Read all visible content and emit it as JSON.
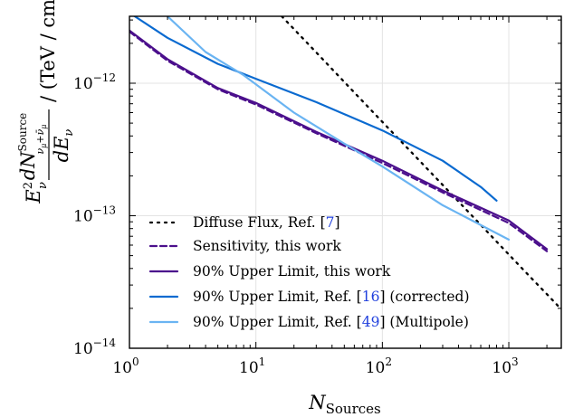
{
  "chart_data": {
    "type": "line",
    "xscale": "log",
    "yscale": "log",
    "xlim": [
      1,
      2600
    ],
    "ylim": [
      1e-14,
      3.2e-12
    ],
    "grid": true,
    "xlabel": {
      "main": "N",
      "sub": "Sources"
    },
    "ylabel": {
      "e": "E",
      "e_sup": "2",
      "e_sub": "ν",
      "num": "dN",
      "num_sup": "Source",
      "num_sub": "ν",
      "num_sub2": "μ",
      "num_sub3": "+ν̄",
      "num_sub4": "μ",
      "den": "dE",
      "den_sub": "ν",
      "unit": "/ (TeV / cm",
      "unit_sup": "2",
      "unit_end": " s)"
    },
    "xticks": [
      {
        "value": 1,
        "base": "10",
        "exp": "0"
      },
      {
        "value": 10,
        "base": "10",
        "exp": "1"
      },
      {
        "value": 100,
        "base": "10",
        "exp": "2"
      },
      {
        "value": 1000,
        "base": "10",
        "exp": "3"
      }
    ],
    "yticks": [
      {
        "value": 1e-14,
        "base": "10",
        "exp": "−14"
      },
      {
        "value": 1e-13,
        "base": "10",
        "exp": "−13"
      },
      {
        "value": 1e-12,
        "base": "10",
        "exp": "−12"
      }
    ],
    "legend_position": "lower-left",
    "series": [
      {
        "legend_text": "Diffuse Flux, Ref. [",
        "legend_ref": "7",
        "legend_end": "]",
        "color": "#000000",
        "style": "dotted",
        "x": [
          16,
          30,
          60,
          100,
          200,
          400,
          700,
          1000,
          1500,
          2000,
          2600
        ],
        "y": [
          3.2e-12,
          1.71e-12,
          8.5e-13,
          5.1e-13,
          2.56e-13,
          1.28e-13,
          7.3e-14,
          5.1e-14,
          3.4e-14,
          2.56e-14,
          1.97e-14
        ]
      },
      {
        "legend_text": "Sensitivity, this work",
        "legend_ref": "",
        "legend_end": "",
        "color": "#4b0f8c",
        "style": "dashed",
        "x": [
          1,
          2,
          5,
          10,
          30,
          100,
          300,
          1000,
          2000
        ],
        "y": [
          2.45e-12,
          1.48e-12,
          9e-13,
          6.9e-13,
          4.2e-13,
          2.5e-13,
          1.5e-13,
          8.8e-14,
          5.4e-14
        ]
      },
      {
        "legend_text": "90% Upper Limit, this work",
        "legend_ref": "",
        "legend_end": "",
        "color": "#4b0f8c",
        "style": "solid",
        "x": [
          1,
          2,
          5,
          10,
          30,
          100,
          300,
          1000,
          2000
        ],
        "y": [
          2.5e-12,
          1.52e-12,
          9.2e-13,
          7.1e-13,
          4.3e-13,
          2.6e-13,
          1.55e-13,
          9.2e-14,
          5.6e-14
        ]
      },
      {
        "legend_text": "90% Upper Limit, Ref. [",
        "legend_ref": "16",
        "legend_end": "] (corrected)",
        "color": "#0a6ad0",
        "style": "solid",
        "x": [
          1.1,
          2,
          5,
          10,
          30,
          100,
          300,
          600,
          800
        ],
        "y": [
          3.2e-12,
          2.2e-12,
          1.4e-12,
          1.08e-12,
          7.2e-13,
          4.4e-13,
          2.6e-13,
          1.65e-13,
          1.3e-13
        ]
      },
      {
        "legend_text": "90% Upper Limit, Ref. [",
        "legend_ref": "49",
        "legend_end": "] (Multipole)",
        "color": "#6ab4f2",
        "style": "solid",
        "x": [
          2,
          4,
          8,
          20,
          50,
          100,
          300,
          1000
        ],
        "y": [
          3.2e-12,
          1.72e-12,
          1.15e-12,
          6e-13,
          3.5e-13,
          2.35e-13,
          1.2e-13,
          6.6e-14
        ]
      }
    ]
  }
}
